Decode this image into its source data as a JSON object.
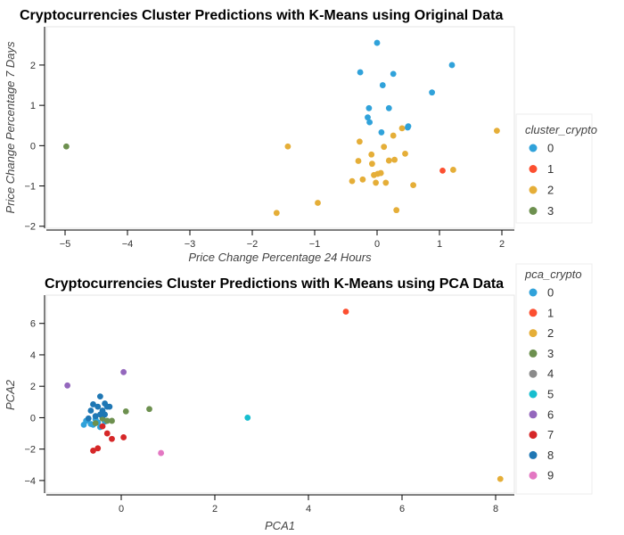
{
  "chart_data": [
    {
      "type": "scatter",
      "title": "Cryptocurrencies Cluster Predictions with K-Means using Original Data",
      "xlabel": "Price Change Percentage 24 Hours",
      "ylabel": "Price Change Percentage 7 Days",
      "xlim": [
        -5.3,
        2.2
      ],
      "ylim": [
        -2.05,
        2.95
      ],
      "xticks": [
        -5,
        -4,
        -3,
        -2,
        -1,
        0,
        1,
        2
      ],
      "yticks": [
        -2,
        -1,
        0,
        1,
        2
      ],
      "grid": false,
      "legend": {
        "title": "cluster_crypto",
        "position": "right"
      },
      "series": [
        {
          "name": "0",
          "color": "#30a2da",
          "points": [
            [
              0.0,
              2.55
            ],
            [
              1.2,
              2.0
            ],
            [
              -0.27,
              1.82
            ],
            [
              0.26,
              1.78
            ],
            [
              0.09,
              1.5
            ],
            [
              0.88,
              1.32
            ],
            [
              0.19,
              0.93
            ],
            [
              -0.13,
              0.93
            ],
            [
              -0.15,
              0.7
            ],
            [
              -0.12,
              0.58
            ],
            [
              0.49,
              0.45
            ],
            [
              0.5,
              0.48
            ],
            [
              0.07,
              0.33
            ]
          ]
        },
        {
          "name": "1",
          "color": "#fc4f30",
          "points": [
            [
              1.05,
              -0.62
            ]
          ]
        },
        {
          "name": "2",
          "color": "#e5ae38",
          "points": [
            [
              1.92,
              0.37
            ],
            [
              -1.43,
              -0.02
            ],
            [
              0.4,
              0.43
            ],
            [
              0.26,
              0.25
            ],
            [
              -0.28,
              0.1
            ],
            [
              0.11,
              -0.03
            ],
            [
              -0.09,
              -0.22
            ],
            [
              0.45,
              -0.2
            ],
            [
              -0.3,
              -0.38
            ],
            [
              -0.08,
              -0.45
            ],
            [
              0.19,
              -0.37
            ],
            [
              0.28,
              -0.35
            ],
            [
              1.22,
              -0.6
            ],
            [
              0.06,
              -0.68
            ],
            [
              0.01,
              -0.7
            ],
            [
              -0.05,
              -0.73
            ],
            [
              -0.23,
              -0.84
            ],
            [
              -0.4,
              -0.88
            ],
            [
              -0.02,
              -0.92
            ],
            [
              0.14,
              -0.92
            ],
            [
              0.58,
              -0.98
            ],
            [
              -0.95,
              -1.42
            ],
            [
              0.31,
              -1.6
            ],
            [
              -1.61,
              -1.67
            ]
          ]
        },
        {
          "name": "3",
          "color": "#6d904f",
          "points": [
            [
              -4.98,
              -0.02
            ]
          ]
        }
      ]
    },
    {
      "type": "scatter",
      "title": "Cryptocurrencies Cluster Predictions with K-Means using PCA Data",
      "xlabel": "PCA1",
      "ylabel": "PCA2",
      "xlim": [
        -1.6,
        8.4
      ],
      "ylim": [
        -4.8,
        7.8
      ],
      "xticks": [
        0,
        2,
        4,
        6,
        8
      ],
      "yticks": [
        -4,
        -2,
        0,
        2,
        4,
        6
      ],
      "grid": false,
      "legend": {
        "title": "pca_crypto",
        "position": "right"
      },
      "series": [
        {
          "name": "0",
          "color": "#30a2da",
          "points": [
            [
              -0.8,
              -0.45
            ],
            [
              -0.75,
              -0.2
            ],
            [
              -0.65,
              -0.4
            ],
            [
              -0.55,
              -0.1
            ],
            [
              -0.5,
              -0.3
            ],
            [
              -0.45,
              -0.6
            ],
            [
              -0.35,
              -0.25
            ],
            [
              -0.6,
              -0.45
            ]
          ]
        },
        {
          "name": "1",
          "color": "#fc4f30",
          "points": [
            [
              4.8,
              6.75
            ]
          ]
        },
        {
          "name": "2",
          "color": "#e5ae38",
          "points": [
            [
              8.1,
              -3.9
            ]
          ]
        },
        {
          "name": "3",
          "color": "#6d904f",
          "points": [
            [
              0.6,
              0.55
            ],
            [
              0.1,
              0.4
            ],
            [
              -0.3,
              -0.2
            ],
            [
              -0.4,
              -0.05
            ],
            [
              -0.55,
              -0.35
            ],
            [
              -0.2,
              -0.2
            ]
          ]
        },
        {
          "name": "4",
          "color": "#8b8b8b",
          "points": []
        },
        {
          "name": "5",
          "color": "#17becf",
          "points": [
            [
              2.7,
              0.0
            ]
          ]
        },
        {
          "name": "6",
          "color": "#9467bd",
          "points": [
            [
              -1.15,
              2.05
            ],
            [
              0.05,
              2.9
            ]
          ]
        },
        {
          "name": "7",
          "color": "#d62728",
          "points": [
            [
              -0.6,
              -2.1
            ],
            [
              -0.5,
              -1.95
            ],
            [
              -0.3,
              -1.0
            ],
            [
              -0.2,
              -1.35
            ],
            [
              0.05,
              -1.25
            ],
            [
              -0.4,
              -0.55
            ]
          ]
        },
        {
          "name": "8",
          "color": "#1f77b4",
          "points": [
            [
              -0.45,
              1.35
            ],
            [
              -0.6,
              0.85
            ],
            [
              -0.5,
              0.7
            ],
            [
              -0.35,
              0.9
            ],
            [
              -0.3,
              0.7
            ],
            [
              -0.25,
              0.7
            ],
            [
              -0.65,
              0.45
            ],
            [
              -0.4,
              0.45
            ],
            [
              -0.45,
              0.2
            ],
            [
              -0.55,
              0.1
            ],
            [
              -0.35,
              0.2
            ],
            [
              -0.7,
              -0.05
            ]
          ]
        },
        {
          "name": "9",
          "color": "#e377c2",
          "points": [
            [
              0.85,
              -2.25
            ]
          ]
        }
      ]
    }
  ]
}
